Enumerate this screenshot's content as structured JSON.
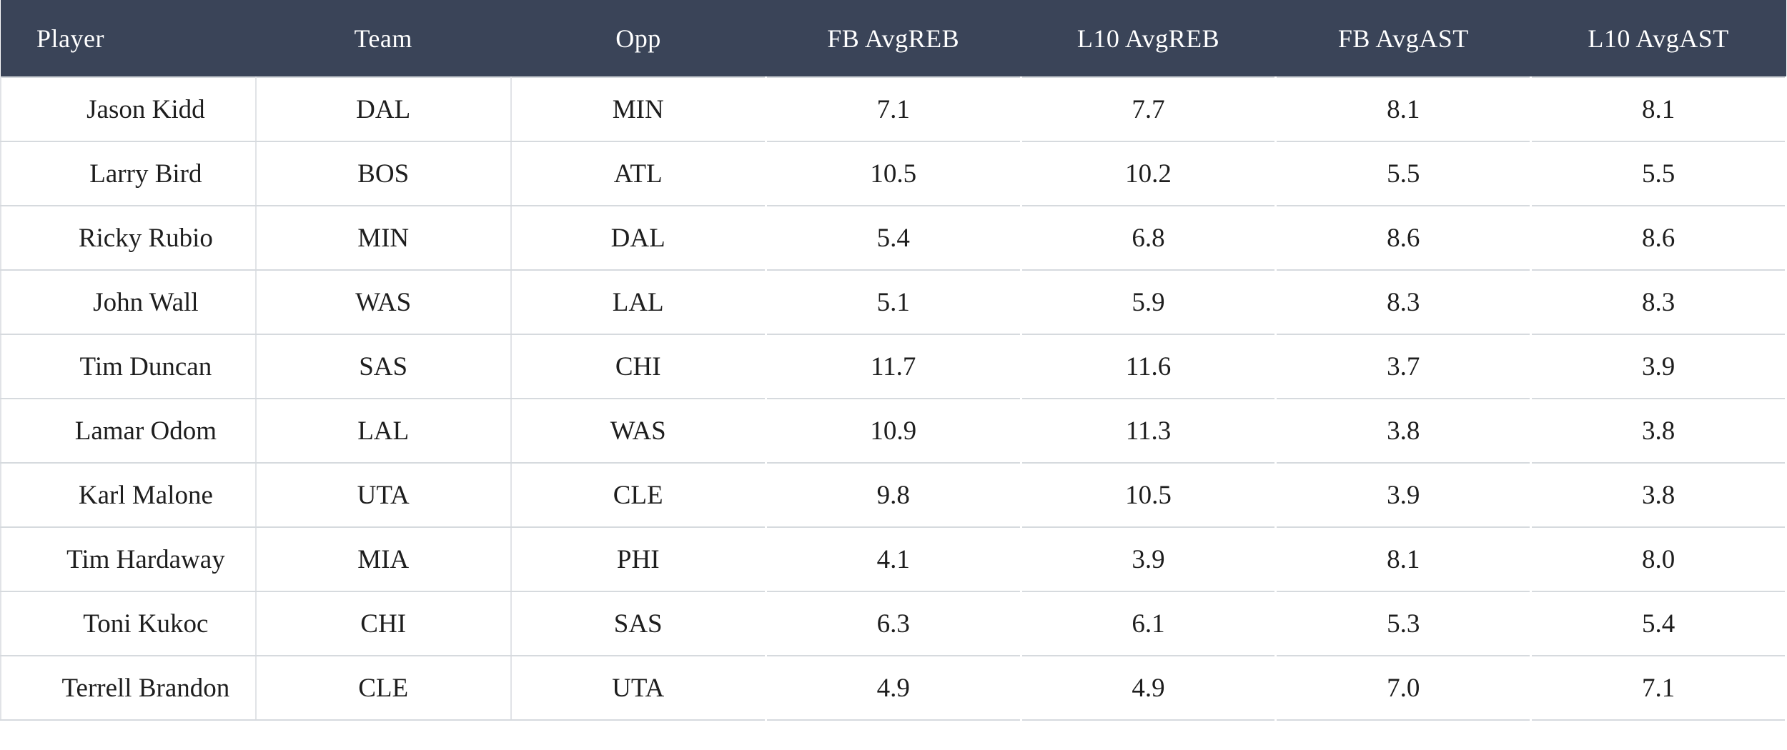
{
  "colors": {
    "header_bg": "#3a4458",
    "header_text": "#ffffff",
    "green": "#0e815c",
    "light_green": "#b9dcc8",
    "orange": "#f9b804",
    "yellow": "#faf096",
    "cell_white": "#ffffff",
    "row_text": "#1e1e1e",
    "row_border": "#d6dade",
    "column_border": "#e1e3e7"
  },
  "table": {
    "columns": [
      {
        "key": "player",
        "label": "Player"
      },
      {
        "key": "team",
        "label": "Team"
      },
      {
        "key": "opp",
        "label": "Opp"
      },
      {
        "key": "fb_avgreb",
        "label": "FB AvgREB"
      },
      {
        "key": "l10_avgreb",
        "label": "L10 AvgREB"
      },
      {
        "key": "fb_avgast",
        "label": "FB AvgAST"
      },
      {
        "key": "l10_avgast",
        "label": "L10 AvgAST"
      }
    ],
    "rows": [
      {
        "player": "Jason Kidd",
        "team": "DAL",
        "opp": "MIN",
        "stats": [
          {
            "value": "7.1",
            "tone": "light_green"
          },
          {
            "value": "7.7",
            "tone": "green"
          },
          {
            "value": "8.1",
            "tone": "green"
          },
          {
            "value": "8.1",
            "tone": "green"
          }
        ]
      },
      {
        "player": "Larry Bird",
        "team": "BOS",
        "opp": "ATL",
        "stats": [
          {
            "value": "10.5",
            "tone": "green"
          },
          {
            "value": "10.2",
            "tone": "green"
          },
          {
            "value": "5.5",
            "tone": "green"
          },
          {
            "value": "5.5",
            "tone": "green"
          }
        ]
      },
      {
        "player": "Ricky Rubio",
        "team": "MIN",
        "opp": "DAL",
        "stats": [
          {
            "value": "5.4",
            "tone": "orange"
          },
          {
            "value": "6.8",
            "tone": "light_green"
          },
          {
            "value": "8.6",
            "tone": "green"
          },
          {
            "value": "8.6",
            "tone": "green"
          }
        ]
      },
      {
        "player": "John Wall",
        "team": "WAS",
        "opp": "LAL",
        "stats": [
          {
            "value": "5.1",
            "tone": "yellow"
          },
          {
            "value": "5.9",
            "tone": "orange"
          },
          {
            "value": "8.3",
            "tone": "green"
          },
          {
            "value": "8.3",
            "tone": "green"
          }
        ]
      },
      {
        "player": "Tim Duncan",
        "team": "SAS",
        "opp": "CHI",
        "stats": [
          {
            "value": "11.7",
            "tone": "green"
          },
          {
            "value": "11.6",
            "tone": "green"
          },
          {
            "value": "3.7",
            "tone": "orange"
          },
          {
            "value": "3.9",
            "tone": "orange"
          }
        ]
      },
      {
        "player": "Lamar Odom",
        "team": "LAL",
        "opp": "WAS",
        "stats": [
          {
            "value": "10.9",
            "tone": "green"
          },
          {
            "value": "11.3",
            "tone": "green"
          },
          {
            "value": "3.8",
            "tone": "orange"
          },
          {
            "value": "3.8",
            "tone": "orange"
          }
        ]
      },
      {
        "player": "Karl Malone",
        "team": "UTA",
        "opp": "CLE",
        "stats": [
          {
            "value": "9.8",
            "tone": "green"
          },
          {
            "value": "10.5",
            "tone": "green"
          },
          {
            "value": "3.9",
            "tone": "orange"
          },
          {
            "value": "3.8",
            "tone": "orange"
          }
        ]
      },
      {
        "player": "Tim Hardaway",
        "team": "MIA",
        "opp": "PHI",
        "stats": [
          {
            "value": "4.1",
            "tone": "white"
          },
          {
            "value": "3.9",
            "tone": "white"
          },
          {
            "value": "8.1",
            "tone": "green"
          },
          {
            "value": "8.0",
            "tone": "green"
          }
        ]
      },
      {
        "player": "Toni Kukoc",
        "team": "CHI",
        "opp": "SAS",
        "stats": [
          {
            "value": "6.3",
            "tone": "light_green"
          },
          {
            "value": "6.1",
            "tone": "light_green"
          },
          {
            "value": "5.3",
            "tone": "green"
          },
          {
            "value": "5.4",
            "tone": "green"
          }
        ]
      },
      {
        "player": "Terrell Brandon",
        "team": "CLE",
        "opp": "UTA",
        "stats": [
          {
            "value": "4.9",
            "tone": "yellow"
          },
          {
            "value": "4.9",
            "tone": "yellow"
          },
          {
            "value": "7.0",
            "tone": "green"
          },
          {
            "value": "7.1",
            "tone": "green"
          }
        ]
      }
    ]
  }
}
